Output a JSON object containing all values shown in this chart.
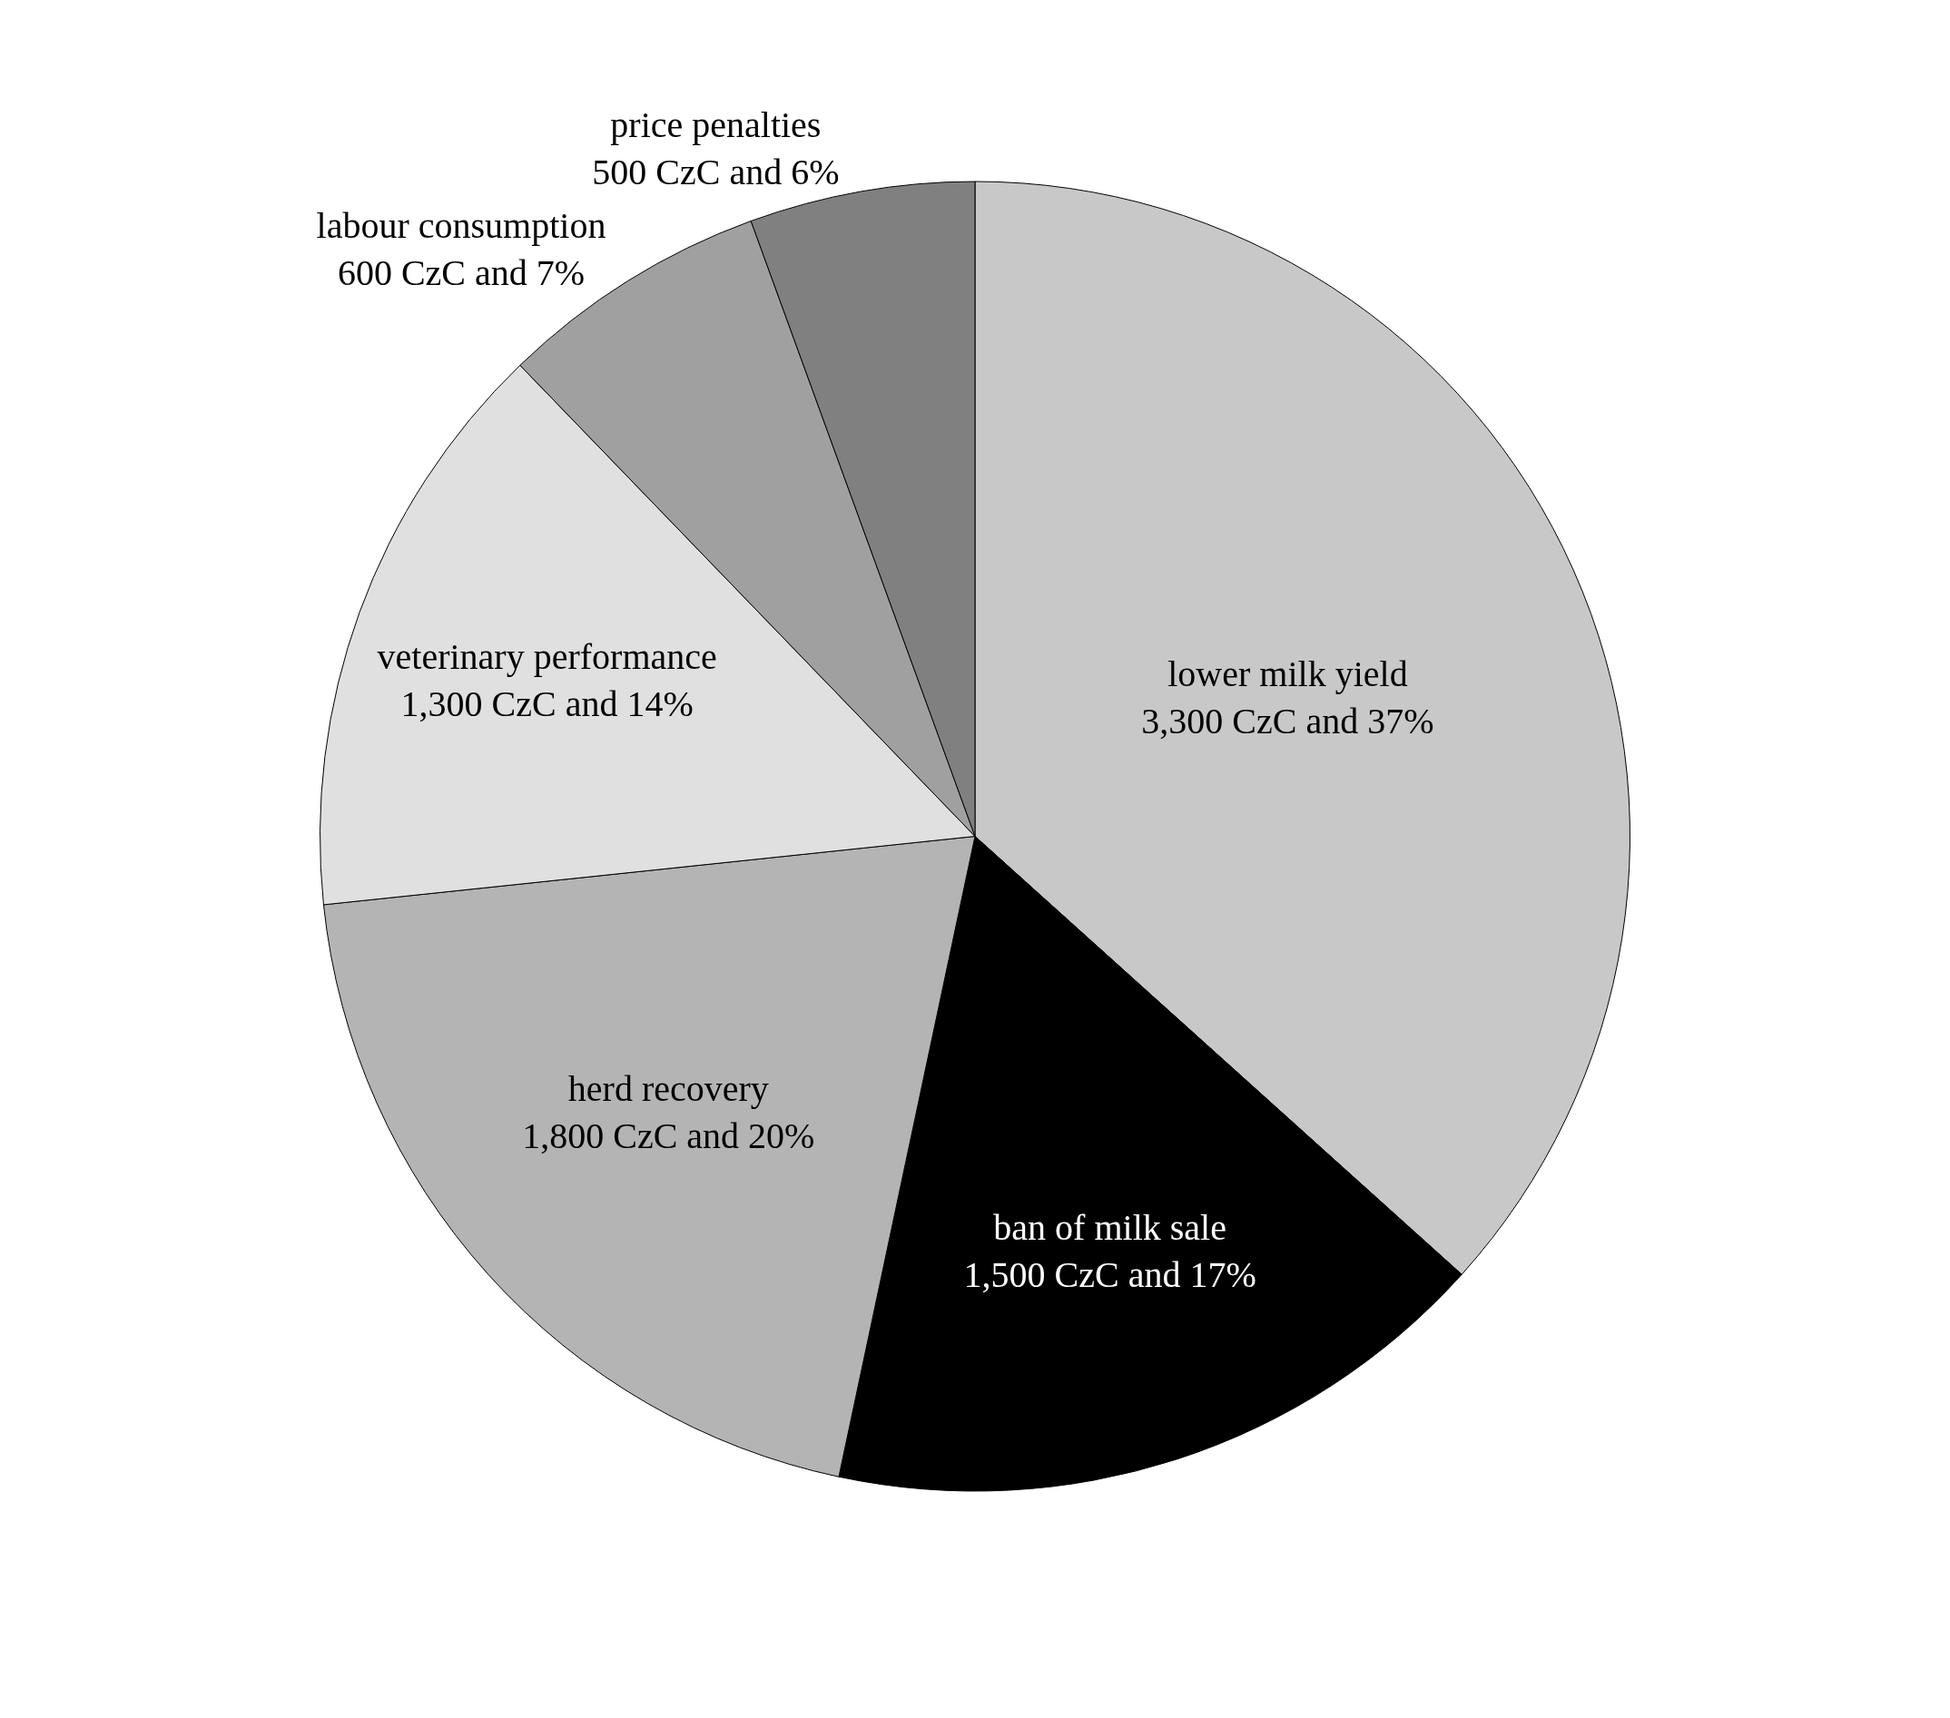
{
  "chart_data": {
    "type": "pie",
    "categories": [
      "lower milk yield",
      "ban of milk sale",
      "herd recovery",
      "veterinary performance",
      "labour consumption",
      "price penalties"
    ],
    "values": [
      3300,
      1500,
      1800,
      1300,
      600,
      500
    ],
    "value_labels": [
      "3,300 CzC and 37%",
      "1,500 CzC and 17%",
      "1,800 CzC and 20%",
      "1,300 CzC and 14%",
      "600 CzC and 7%",
      "500 CzC and 6%"
    ],
    "colors": [
      "#c8c8c8",
      "#000000",
      "#b4b4b4",
      "#e0e0e0",
      "#a0a0a0",
      "#808080"
    ],
    "legend": false
  }
}
